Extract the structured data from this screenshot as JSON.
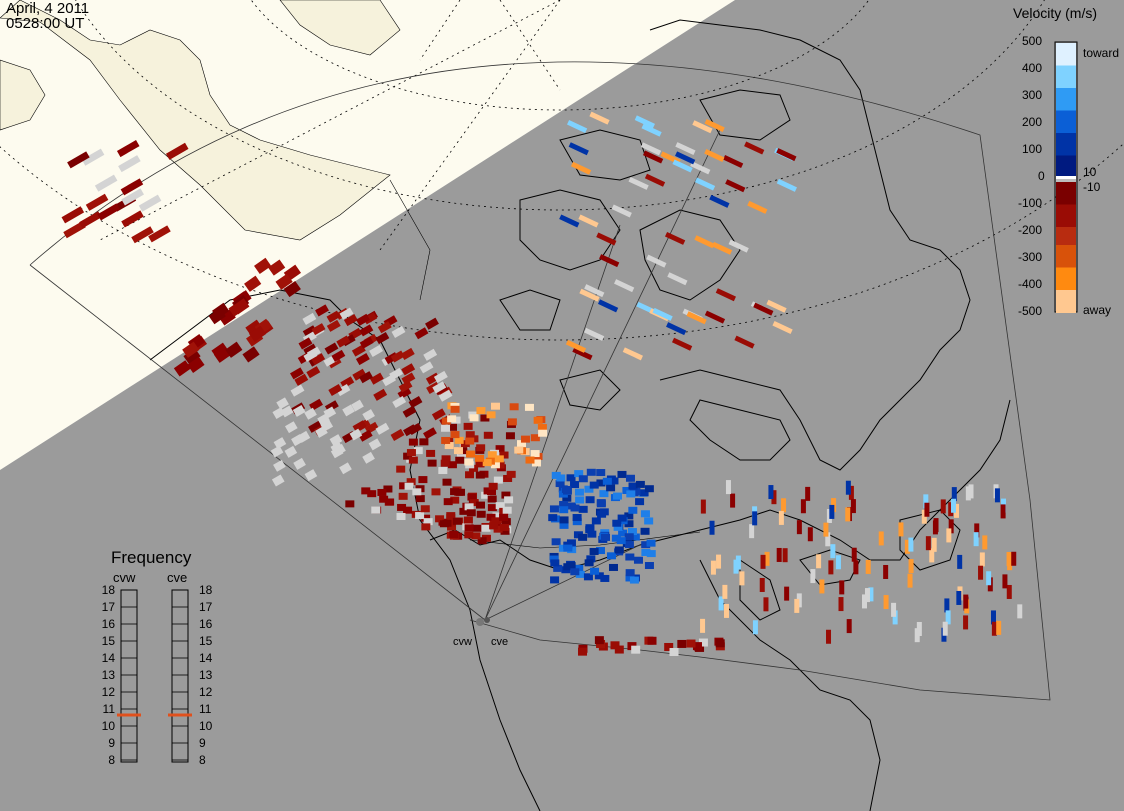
{
  "header": {
    "date": "April, 4 2011",
    "time": "0528:00 UT"
  },
  "velocity_legend": {
    "title": "Velocity (m/s)",
    "ticks": [
      "500",
      "400",
      "300",
      "200",
      "100",
      "10",
      "0",
      "-10",
      "-100",
      "-200",
      "-300",
      "-400",
      "-500"
    ],
    "toward_label": "toward",
    "away_label": "away",
    "colors_toward": [
      "#dff1ff",
      "#7fd2ff",
      "#2f9bf4",
      "#0b5fd6",
      "#0033a6",
      "#001a80"
    ],
    "colors_away": [
      "#7a0000",
      "#9a0c05",
      "#b82c10",
      "#d8520a",
      "#ff8a10",
      "#ffc890"
    ],
    "range": [
      -500,
      500
    ]
  },
  "frequency_panel": {
    "title": "Frequency",
    "left_site": "cvw",
    "right_site": "cve",
    "levels": [
      "18",
      "17",
      "16",
      "15",
      "14",
      "13",
      "12",
      "11",
      "10",
      "9",
      "8"
    ],
    "cvw_frequency_mhz": 10.5,
    "cve_frequency_mhz": 10.5
  },
  "radar_sites": [
    {
      "name": "cvw"
    },
    {
      "name": "cve"
    }
  ],
  "map_colors": {
    "land_shaded": "#9b9b9b",
    "daylight": "#fdfbef",
    "background": "#ffffff",
    "coast": "#000000",
    "ground_scatter": "#d4d4d4"
  }
}
